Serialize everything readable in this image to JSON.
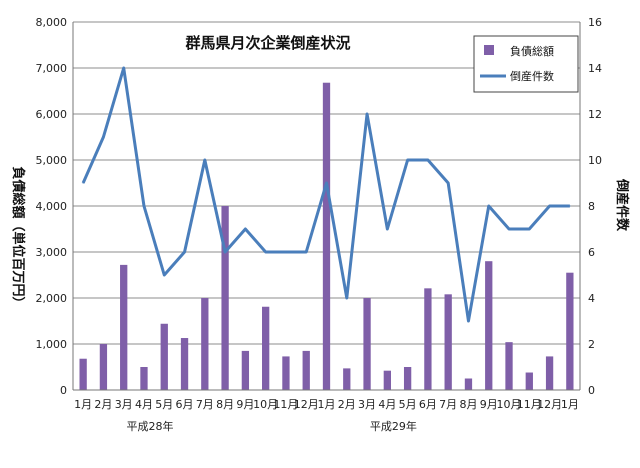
{
  "chart_data": {
    "type": "bar",
    "title": "群馬県月次企業倒産状況",
    "categories": [
      "1月",
      "2月",
      "3月",
      "4月",
      "5月",
      "6月",
      "7月",
      "8月",
      "9月",
      "10月",
      "11月",
      "12月",
      "1月",
      "2月",
      "3月",
      "4月",
      "5月",
      "6月",
      "7月",
      "8月",
      "9月",
      "10月",
      "11月",
      "12月",
      "1月"
    ],
    "year_labels": [
      {
        "label": "平成28年",
        "category_index": 3
      },
      {
        "label": "平成29年",
        "category_index": 15
      }
    ],
    "series": [
      {
        "name": "負債総額",
        "type": "bar",
        "axis": "left",
        "color": "#7F5FA8",
        "values": [
          680,
          1000,
          2720,
          500,
          1440,
          1130,
          2000,
          4000,
          850,
          1810,
          730,
          850,
          6680,
          470,
          2000,
          420,
          500,
          2210,
          2080,
          250,
          2800,
          1040,
          380,
          730,
          2550
        ]
      },
      {
        "name": "倒産件数",
        "type": "line",
        "axis": "right",
        "color": "#4A7EBB",
        "values": [
          9,
          11,
          14,
          8,
          5,
          6,
          10,
          6,
          7,
          6,
          6,
          6,
          9,
          4,
          12,
          7,
          10,
          10,
          9,
          3,
          8,
          7,
          7,
          8,
          8
        ]
      }
    ],
    "ylabel_left": "負債総額（単位百万円）",
    "ylabel_right": "倒産件数",
    "ylim_left": [
      0,
      8000
    ],
    "ylim_right": [
      0,
      16
    ],
    "yticks_left": [
      "0",
      "1,000",
      "2,000",
      "3,000",
      "4,000",
      "5,000",
      "6,000",
      "7,000",
      "8,000"
    ],
    "yticks_right": [
      "0",
      "2",
      "4",
      "6",
      "8",
      "10",
      "12",
      "14",
      "16"
    ],
    "grid": true,
    "legend_position": "top-right"
  }
}
